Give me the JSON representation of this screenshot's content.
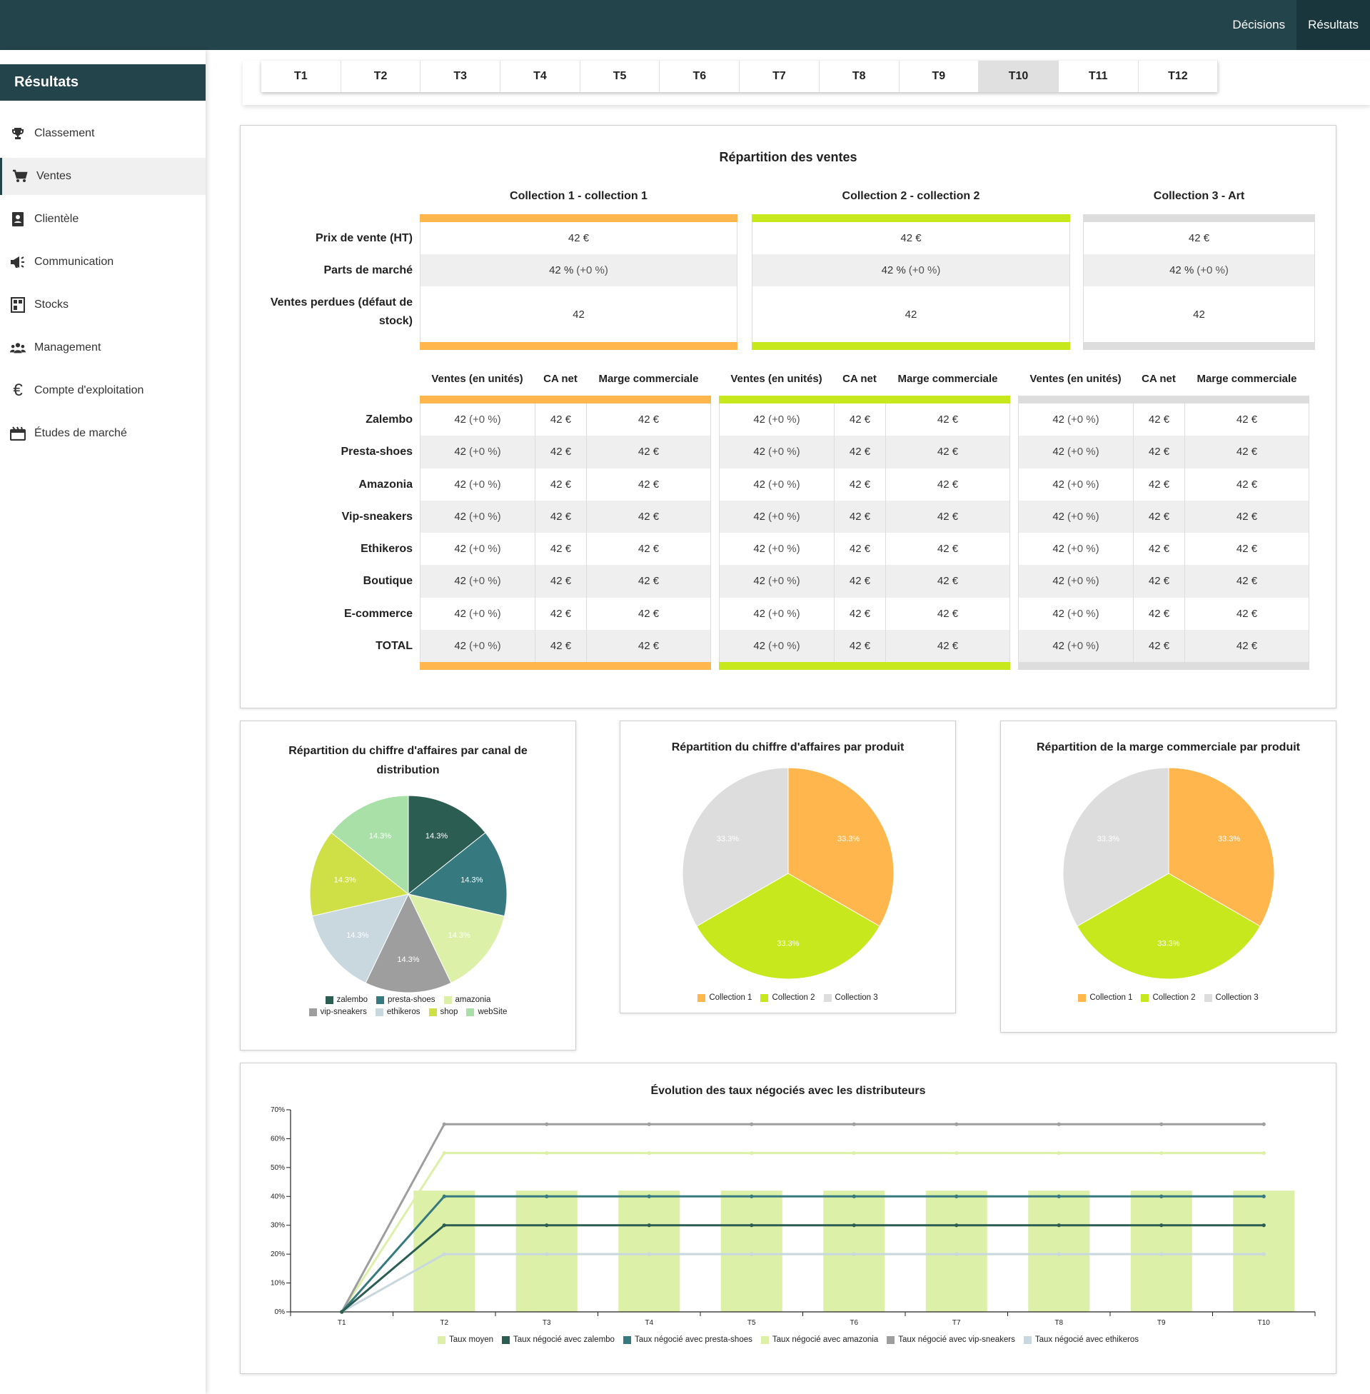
{
  "topnav": {
    "items": [
      "Décisions",
      "Résultats"
    ],
    "active": 1
  },
  "sidebar": {
    "title": "Résultats",
    "items": [
      {
        "label": "Classement",
        "icon": "trophy-icon"
      },
      {
        "label": "Ventes",
        "icon": "cart-icon"
      },
      {
        "label": "Clientèle",
        "icon": "contacts-icon"
      },
      {
        "label": "Communication",
        "icon": "megaphone-icon"
      },
      {
        "label": "Stocks",
        "icon": "warehouse-icon"
      },
      {
        "label": "Management",
        "icon": "team-icon"
      },
      {
        "label": "Compte d'exploitation",
        "icon": "euro-icon"
      },
      {
        "label": "Études de marché",
        "icon": "study-icon"
      }
    ],
    "active": 1
  },
  "periods": {
    "items": [
      "T1",
      "T2",
      "T3",
      "T4",
      "T5",
      "T6",
      "T7",
      "T8",
      "T9",
      "T10",
      "T11",
      "T12"
    ],
    "active": 9
  },
  "sales": {
    "title": "Répartition des ventes",
    "collections": [
      {
        "name": "Collection 1 - collection 1",
        "color": "#ffb74d"
      },
      {
        "name": "Collection 2 - collection 2",
        "color": "#c6e81c"
      },
      {
        "name": "Collection 3 - Art",
        "color": "#dddddd"
      }
    ],
    "summary_labels": [
      "Prix de vente (HT)",
      "Parts de marché",
      "Ventes perdues (défaut de stock)"
    ],
    "summary_values": [
      [
        "42 €",
        "42 %",
        "42"
      ],
      [
        "42 €",
        "42 %",
        "42"
      ],
      [
        "42 €",
        "42 %",
        "42"
      ]
    ],
    "summary_delta": "(+0 %)",
    "sub_headers": [
      "Ventes (en unités)",
      "CA net",
      "Marge commerciale"
    ],
    "channels": [
      "Zalembo",
      "Presta-shoes",
      "Amazonia",
      "Vip-sneakers",
      "Ethikeros",
      "Boutique",
      "E-commerce",
      "TOTAL"
    ],
    "cell_units": "42",
    "cell_delta": "(+0 %)",
    "cell_money": "42 €"
  },
  "pie_channel": {
    "chart_data": {
      "type": "pie",
      "title": "Répartition du chiffre d'affaires par canal de distribution",
      "categories": [
        "zalembo",
        "presta-shoes",
        "amazonia",
        "vip-sneakers",
        "ethikeros",
        "shop",
        "webSite"
      ],
      "values": [
        14.3,
        14.3,
        14.3,
        14.3,
        14.3,
        14.3,
        14.3
      ],
      "labels": [
        "14.3%",
        "14.3%",
        "14.3%",
        "14.3%",
        "14.3%",
        "14.3%",
        "14.3%"
      ],
      "colors": [
        "#2b5d52",
        "#367a80",
        "#dcf0a8",
        "#9e9e9e",
        "#c9d7de",
        "#cee046",
        "#a8e0a8"
      ],
      "legend": "bottom"
    }
  },
  "pie_product_ca": {
    "chart_data": {
      "type": "pie",
      "title": "Répartition du chiffre d'affaires par produit",
      "categories": [
        "Collection 1",
        "Collection 2",
        "Collection 3"
      ],
      "values": [
        33.3,
        33.3,
        33.3
      ],
      "labels": [
        "33.3%",
        "33.3%",
        "33.3%"
      ],
      "colors": [
        "#ffb74d",
        "#c6e81c",
        "#dddddd"
      ],
      "legend": "bottom"
    }
  },
  "pie_product_margin": {
    "chart_data": {
      "type": "pie",
      "title": "Répartition de la marge commerciale par produit",
      "categories": [
        "Collection 1",
        "Collection 2",
        "Collection 3"
      ],
      "values": [
        33.3,
        33.3,
        33.3
      ],
      "labels": [
        "33.3%",
        "33.3%",
        "33.3%"
      ],
      "colors": [
        "#ffb74d",
        "#c6e81c",
        "#dddddd"
      ],
      "legend": "bottom"
    }
  },
  "rates_chart": {
    "chart_data": {
      "type": "line",
      "title": "Évolution des taux négociés avec les distributeurs",
      "categories": [
        "T1",
        "T2",
        "T3",
        "T4",
        "T5",
        "T6",
        "T7",
        "T8",
        "T9",
        "T10"
      ],
      "ylim": [
        0,
        70
      ],
      "yticks": [
        0,
        10,
        20,
        30,
        40,
        50,
        60,
        70
      ],
      "ytick_labels": [
        "0%",
        "10%",
        "20%",
        "30%",
        "40%",
        "50%",
        "60%",
        "70%"
      ],
      "bar_series": {
        "name": "Taux moyen",
        "color": "#dcf0a8",
        "values": [
          0,
          42,
          42,
          42,
          42,
          42,
          42,
          42,
          42,
          42
        ]
      },
      "series": [
        {
          "name": "Taux négocié avec zalembo",
          "color": "#2b5d52",
          "values": [
            0,
            30,
            30,
            30,
            30,
            30,
            30,
            30,
            30,
            30
          ]
        },
        {
          "name": "Taux négocié avec presta-shoes",
          "color": "#367a80",
          "values": [
            0,
            40,
            40,
            40,
            40,
            40,
            40,
            40,
            40,
            40
          ]
        },
        {
          "name": "Taux négocié avec amazonia",
          "color": "#dcf0a8",
          "values": [
            0,
            55,
            55,
            55,
            55,
            55,
            55,
            55,
            55,
            55
          ]
        },
        {
          "name": "Taux négocié avec vip-sneakers",
          "color": "#9e9e9e",
          "values": [
            0,
            65,
            65,
            65,
            65,
            65,
            65,
            65,
            65,
            65
          ]
        },
        {
          "name": "Taux négocié avec ethikeros",
          "color": "#c9d7de",
          "values": [
            0,
            20,
            20,
            20,
            20,
            20,
            20,
            20,
            20,
            20
          ]
        }
      ],
      "legend": "bottom",
      "grid": false
    }
  }
}
